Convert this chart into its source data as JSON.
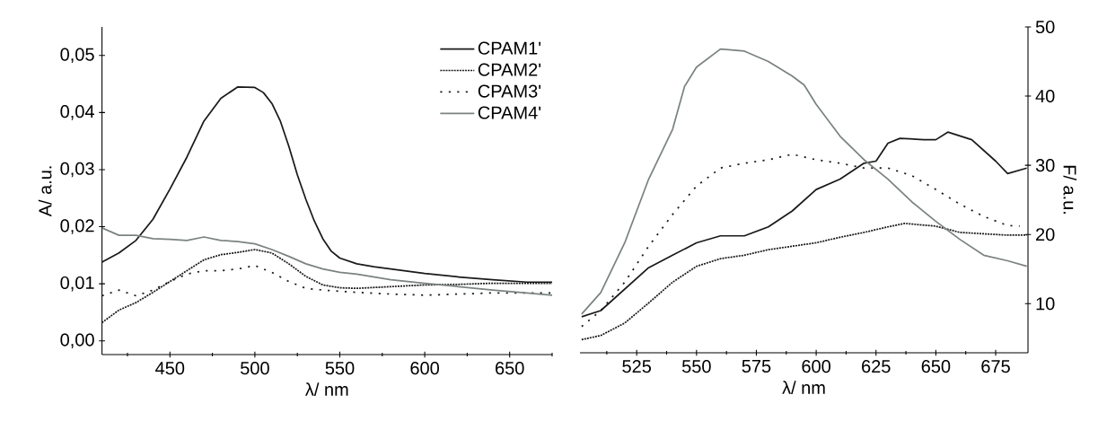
{
  "chart_data": [
    {
      "type": "line",
      "xlabel": "λ/ nm",
      "ylabel": "A/ a.u.",
      "xlim": [
        410,
        675
      ],
      "ylim": [
        -0.0024,
        0.055
      ],
      "xticks": [
        {
          "value": 425,
          "label": null
        },
        450,
        {
          "value": 475,
          "label": null
        },
        500,
        {
          "value": 525,
          "label": null
        },
        550,
        {
          "value": 575,
          "label": null
        },
        600,
        {
          "value": 625,
          "label": null
        },
        650,
        {
          "value": 675,
          "label": null
        }
      ],
      "yticks": [
        {
          "value": 0,
          "label": "0,00"
        },
        {
          "value": 0.01,
          "label": "0,01"
        },
        {
          "value": 0.02,
          "label": "0,02"
        },
        {
          "value": 0.03,
          "label": "0,03"
        },
        {
          "value": 0.04,
          "label": "0,04"
        },
        {
          "value": 0.05,
          "label": "0,05"
        }
      ],
      "legend": "top right",
      "series": [
        {
          "name": "CPAM1'",
          "color": "#1a1a1a",
          "line_style": "solid",
          "x": [
            410,
            420,
            430,
            440,
            450,
            460,
            470,
            480,
            490,
            500,
            505,
            510,
            515,
            520,
            525,
            530,
            535,
            540,
            545,
            550,
            560,
            570,
            580,
            590,
            600,
            620,
            640,
            660,
            675
          ],
          "values": [
            0.0138,
            0.0154,
            0.0176,
            0.0213,
            0.0266,
            0.0322,
            0.0385,
            0.0425,
            0.0445,
            0.0444,
            0.0435,
            0.0416,
            0.0385,
            0.0341,
            0.0291,
            0.0248,
            0.021,
            0.0179,
            0.0157,
            0.0145,
            0.0135,
            0.013,
            0.0126,
            0.0122,
            0.0118,
            0.0112,
            0.0107,
            0.0103,
            0.0103
          ]
        },
        {
          "name": "CPAM2'",
          "color": "#1a1a1a",
          "line_style": "dashed",
          "x": [
            410,
            420,
            430,
            440,
            450,
            460,
            470,
            480,
            490,
            500,
            510,
            520,
            530,
            540,
            550,
            560,
            580,
            600,
            620,
            640,
            660,
            675
          ],
          "values": [
            0.0032,
            0.0054,
            0.0067,
            0.0085,
            0.0104,
            0.0123,
            0.0142,
            0.0151,
            0.0155,
            0.016,
            0.0154,
            0.0135,
            0.0113,
            0.0098,
            0.0093,
            0.0092,
            0.0095,
            0.0098,
            0.0099,
            0.0101,
            0.0101,
            0.0101
          ]
        },
        {
          "name": "CPAM3'",
          "color": "#1a1a1a",
          "line_style": "dotted",
          "x": [
            410,
            420,
            430,
            440,
            450,
            460,
            470,
            480,
            490,
            500,
            510,
            520,
            530,
            540,
            560,
            580,
            600,
            620,
            640,
            660,
            675
          ],
          "values": [
            0.0079,
            0.0089,
            0.0079,
            0.0089,
            0.0104,
            0.0117,
            0.0123,
            0.0123,
            0.0126,
            0.0132,
            0.012,
            0.0104,
            0.0092,
            0.0089,
            0.0085,
            0.0082,
            0.008,
            0.0082,
            0.0084,
            0.0084,
            0.0084
          ]
        },
        {
          "name": "CPAM4'",
          "color": "#7b8382",
          "line_style": "solid",
          "x": [
            410,
            420,
            430,
            440,
            450,
            460,
            470,
            480,
            490,
            500,
            510,
            520,
            530,
            540,
            550,
            560,
            580,
            600,
            620,
            640,
            660,
            675
          ],
          "values": [
            0.0198,
            0.0185,
            0.0185,
            0.0179,
            0.0178,
            0.0176,
            0.0182,
            0.0176,
            0.0174,
            0.017,
            0.016,
            0.0148,
            0.0135,
            0.0126,
            0.012,
            0.0117,
            0.0107,
            0.0101,
            0.0095,
            0.0089,
            0.0084,
            0.008
          ]
        }
      ]
    },
    {
      "type": "line",
      "xlabel": "λ/ nm",
      "y2label": "F/ a.u.",
      "xlim": [
        501.3,
        688.5
      ],
      "y2lim": [
        2.9,
        50
      ],
      "xticks": [
        {
          "value": 512.5,
          "label": null
        },
        525,
        {
          "value": 537.5,
          "label": null
        },
        550,
        {
          "value": 562.5,
          "label": null
        },
        575,
        {
          "value": 587.5,
          "label": null
        },
        600,
        {
          "value": 612.5,
          "label": null
        },
        625,
        {
          "value": 637.5,
          "label": null
        },
        650,
        {
          "value": 662.5,
          "label": null
        },
        675
      ],
      "y2ticks": [
        10,
        20,
        30,
        40,
        50
      ],
      "series": [
        {
          "color": "#1a1a1a",
          "line_style": "solid",
          "axis": "y2",
          "x": [
            502,
            510,
            520,
            530,
            540,
            550,
            560,
            570,
            580,
            590,
            600,
            610,
            620,
            625,
            630,
            635,
            645,
            650,
            655,
            665,
            675,
            680,
            688
          ],
          "values": [
            8.1,
            9.0,
            12.1,
            15.2,
            17.0,
            18.8,
            19.8,
            19.8,
            21.1,
            23.4,
            26.5,
            28.0,
            30.3,
            30.6,
            33.2,
            33.9,
            33.7,
            33.7,
            34.8,
            33.7,
            30.6,
            28.8,
            29.6
          ]
        },
        {
          "color": "#1a1a1a",
          "line_style": "dashed",
          "axis": "y2",
          "x": [
            502,
            510,
            520,
            530,
            540,
            550,
            560,
            570,
            580,
            590,
            600,
            610,
            620,
            630,
            637,
            650,
            660,
            670,
            680,
            688
          ],
          "values": [
            4.8,
            5.4,
            7.2,
            10.1,
            13.1,
            15.4,
            16.5,
            17.0,
            17.8,
            18.3,
            18.8,
            19.6,
            20.3,
            21.1,
            21.6,
            21.2,
            20.3,
            20.1,
            19.9,
            19.9
          ]
        },
        {
          "color": "#1a1a1a",
          "line_style": "dotted",
          "axis": "y2",
          "x": [
            502,
            510,
            520,
            530,
            540,
            550,
            560,
            570,
            580,
            590,
            600,
            610,
            620,
            630,
            640,
            650,
            660,
            670,
            680,
            685
          ],
          "values": [
            6.7,
            9.0,
            13.1,
            18.3,
            22.9,
            27.0,
            29.6,
            30.3,
            30.8,
            31.6,
            30.8,
            30.3,
            29.6,
            29.6,
            28.5,
            26.5,
            24.4,
            22.6,
            21.3,
            21.2
          ]
        },
        {
          "color": "#7b8382",
          "line_style": "solid",
          "axis": "y2",
          "x": [
            502,
            510,
            520,
            530,
            540,
            545,
            550,
            560,
            570,
            580,
            590,
            595,
            600,
            610,
            620,
            630,
            640,
            650,
            660,
            670,
            680,
            688
          ],
          "values": [
            8.5,
            11.6,
            18.8,
            28.0,
            35.2,
            41.4,
            44.2,
            46.8,
            46.5,
            45.0,
            42.9,
            41.6,
            38.8,
            34.2,
            30.8,
            28.0,
            24.7,
            21.9,
            19.3,
            17.0,
            16.2,
            15.4
          ]
        }
      ]
    }
  ]
}
